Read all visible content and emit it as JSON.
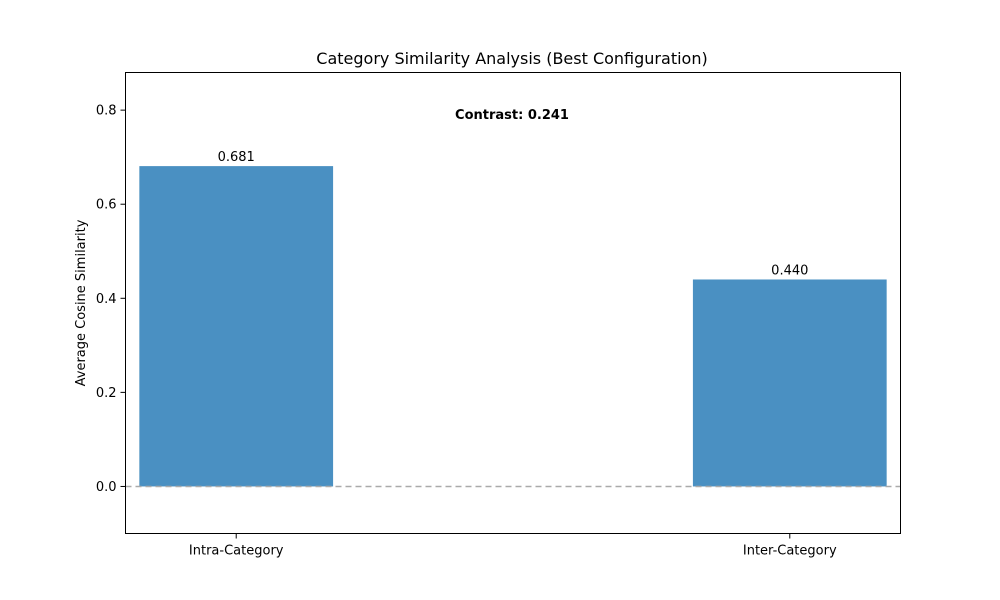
{
  "chart_data": {
    "type": "bar",
    "title": "Category Similarity Analysis (Best Configuration)",
    "xlabel": "",
    "ylabel": "Average Cosine Similarity",
    "categories": [
      "Intra-Category",
      "Inter-Category"
    ],
    "values": [
      0.681,
      0.44
    ],
    "data_labels": [
      "0.681",
      "0.440"
    ],
    "ylim": [
      -0.1,
      0.88
    ],
    "yticks": [
      0.0,
      0.2,
      0.4,
      0.6,
      0.8
    ],
    "ytick_labels": [
      "0.0",
      "0.2",
      "0.4",
      "0.6",
      "0.8"
    ],
    "annotation": "Contrast: 0.241",
    "reference_line": {
      "y": 0.0,
      "style": "dashed",
      "color": "#aaaaaa"
    },
    "bar_color": "#4a90c2",
    "grid": false,
    "legend": "none"
  }
}
